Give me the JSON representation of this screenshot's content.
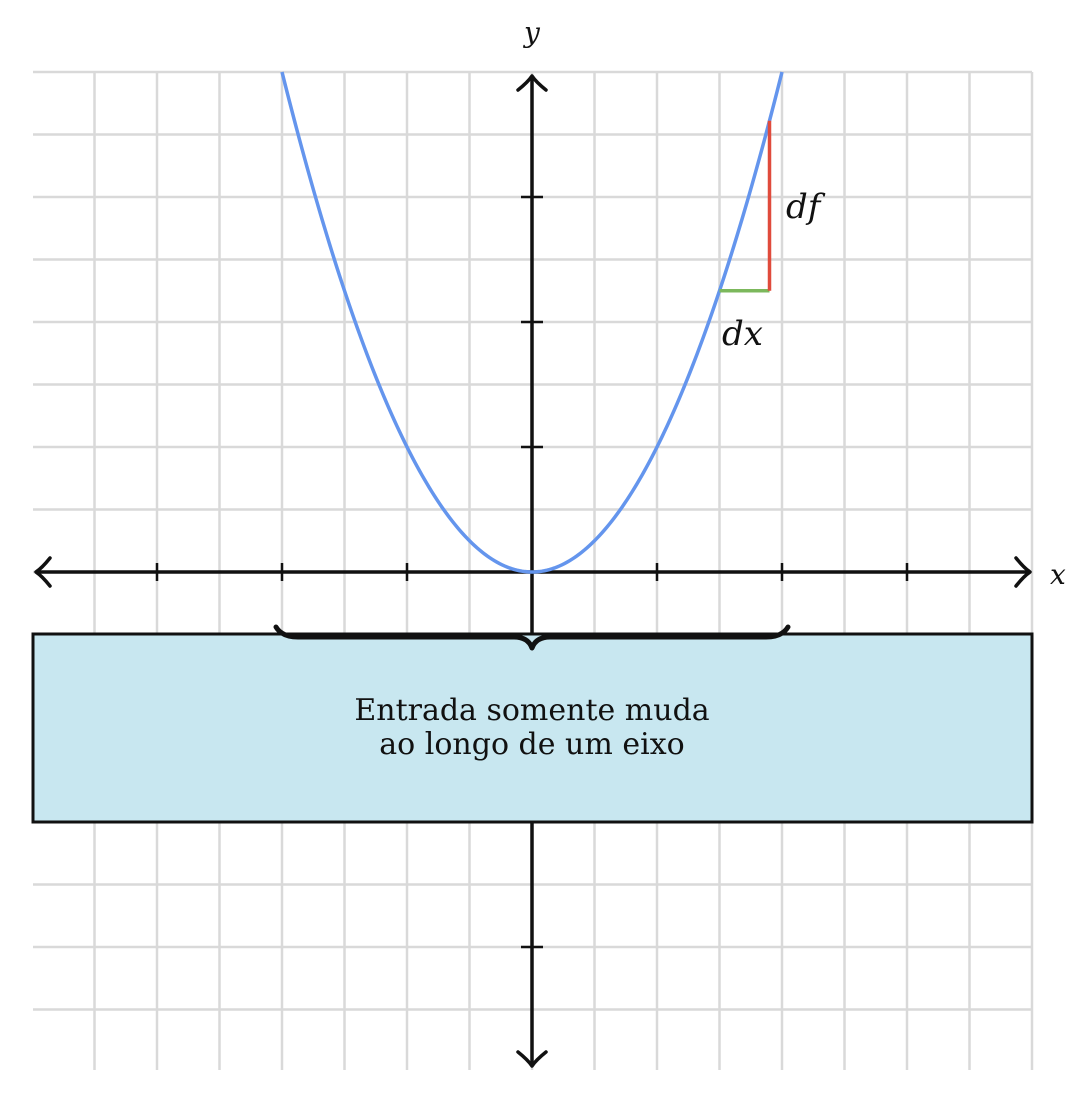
{
  "axes": {
    "x_label": "x",
    "y_label": "y"
  },
  "annotations": {
    "df_label": "df",
    "dx_label": "dx"
  },
  "info_box": {
    "line1": "Entrada somente muda",
    "line2": "ao longo de um eixo"
  },
  "colors": {
    "grid": "#d9d9d9",
    "axis": "#111111",
    "curve": "#6495ed",
    "dx_segment": "#7cb85c",
    "df_segment": "#e04b3c",
    "box_fill": "#c8e7f0",
    "box_border": "#111111"
  },
  "curve": {
    "function": "y = x^2",
    "x_range": [
      -2,
      2
    ]
  },
  "segments": {
    "dx": {
      "x_from": 1.5,
      "x_to": 1.9,
      "y": 2.25
    },
    "df": {
      "x": 1.9,
      "y_from": 2.25,
      "y_to": 3.61
    }
  },
  "brace": {
    "x_from": -2,
    "x_to": 2
  }
}
